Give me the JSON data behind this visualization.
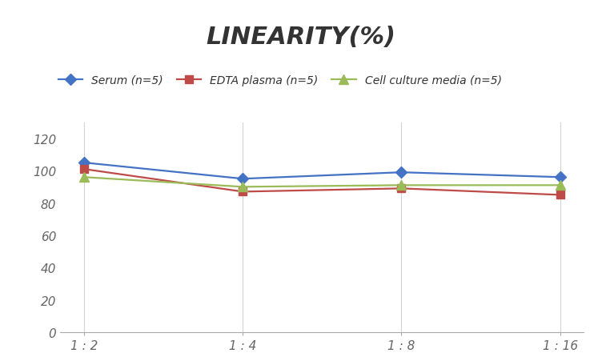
{
  "title": "LINEARITY(%)",
  "x_labels": [
    "1 : 2",
    "1 : 4",
    "1 : 8",
    "1 : 16"
  ],
  "x_positions": [
    0,
    1,
    2,
    3
  ],
  "series": [
    {
      "label": "Serum (n=5)",
      "values": [
        105,
        95,
        99,
        96
      ],
      "color": "#4472C4",
      "marker": "D",
      "marker_size": 7,
      "linewidth": 1.6
    },
    {
      "label": "EDTA plasma (n=5)",
      "values": [
        101,
        87,
        89,
        85
      ],
      "color": "#BE4B48",
      "marker": "s",
      "marker_size": 7,
      "linewidth": 1.6
    },
    {
      "label": "Cell culture media (n=5)",
      "values": [
        96,
        90,
        91,
        91
      ],
      "color": "#9BBB59",
      "marker": "^",
      "marker_size": 8,
      "linewidth": 1.6
    }
  ],
  "ylim": [
    0,
    130
  ],
  "yticks": [
    0,
    20,
    40,
    60,
    80,
    100,
    120
  ],
  "background_color": "#FFFFFF",
  "grid_color": "#D3D3D3",
  "title_fontsize": 22,
  "legend_fontsize": 10,
  "tick_fontsize": 11
}
